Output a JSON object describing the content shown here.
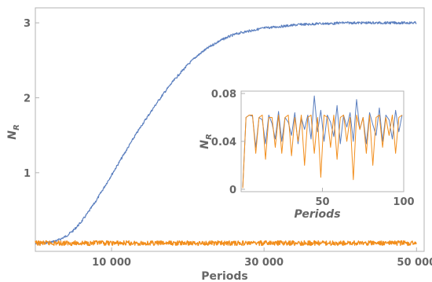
{
  "chart_data": [
    {
      "type": "line",
      "panel": "main",
      "xlabel": "Periods",
      "ylabel_main": "N",
      "ylabel_sub": "R",
      "xlim": [
        0,
        51000
      ],
      "ylim": [
        -0.05,
        3.2
      ],
      "xticks": [
        10000,
        30000,
        50000
      ],
      "xtick_labels": [
        "10 000",
        "30 000",
        "50 000"
      ],
      "yticks": [
        1,
        2,
        3
      ],
      "ytick_labels": [
        "1",
        "2",
        "3"
      ],
      "grid": false,
      "series": [
        {
          "color": "#5b7fbf",
          "x": [
            0,
            1000,
            2000,
            3000,
            4000,
            5000,
            6000,
            7000,
            8000,
            9000,
            10000,
            11000,
            12000,
            13000,
            14000,
            15000,
            16000,
            17000,
            18000,
            19000,
            20000,
            21000,
            22000,
            23000,
            24000,
            25000,
            26000,
            27000,
            28000,
            29000,
            30000,
            31000,
            32000,
            33000,
            34000,
            35000,
            36000,
            37000,
            38000,
            39000,
            40000,
            41000,
            42000,
            43000,
            44000,
            45000,
            46000,
            47000,
            48000,
            49000,
            50000
          ],
          "values": [
            0.05,
            0.06,
            0.07,
            0.1,
            0.15,
            0.23,
            0.34,
            0.48,
            0.63,
            0.8,
            0.97,
            1.14,
            1.31,
            1.48,
            1.64,
            1.79,
            1.94,
            2.08,
            2.21,
            2.33,
            2.44,
            2.54,
            2.62,
            2.69,
            2.75,
            2.8,
            2.84,
            2.87,
            2.89,
            2.91,
            2.93,
            2.94,
            2.95,
            2.96,
            2.97,
            2.98,
            2.98,
            2.99,
            2.99,
            2.99,
            3.0,
            3.0,
            3.0,
            3.0,
            3.0,
            3.0,
            3.0,
            3.0,
            3.0,
            3.0,
            3.0
          ]
        },
        {
          "color": "#f28e1c",
          "x": [
            0,
            50000
          ],
          "values": [
            0.06,
            0.06
          ]
        }
      ]
    },
    {
      "type": "line",
      "panel": "inset",
      "xlabel": "Periods",
      "ylabel_main": "N",
      "ylabel_sub": "R",
      "xlim": [
        0,
        100
      ],
      "ylim": [
        -0.002,
        0.082
      ],
      "xticks": [
        50,
        100
      ],
      "xtick_labels": [
        "50",
        "100"
      ],
      "yticks": [
        0,
        0.04,
        0.08
      ],
      "ytick_labels": [
        "0",
        "0.04",
        "0.08"
      ],
      "grid": false,
      "series": [
        {
          "color": "#5b7fbf",
          "x": [
            1,
            3,
            5,
            7,
            9,
            11,
            13,
            15,
            17,
            19,
            21,
            23,
            25,
            27,
            29,
            31,
            33,
            35,
            37,
            39,
            41,
            43,
            45,
            47,
            49,
            51,
            53,
            55,
            57,
            59,
            61,
            63,
            65,
            67,
            69,
            71,
            73,
            75,
            77,
            79,
            81,
            83,
            85,
            87,
            89,
            91,
            93,
            95,
            97,
            99
          ],
          "values": [
            0.002,
            0.06,
            0.062,
            0.061,
            0.035,
            0.06,
            0.058,
            0.038,
            0.062,
            0.055,
            0.042,
            0.065,
            0.04,
            0.06,
            0.056,
            0.045,
            0.064,
            0.038,
            0.06,
            0.05,
            0.062,
            0.042,
            0.078,
            0.048,
            0.066,
            0.04,
            0.062,
            0.056,
            0.044,
            0.07,
            0.038,
            0.062,
            0.052,
            0.064,
            0.04,
            0.075,
            0.05,
            0.06,
            0.038,
            0.064,
            0.054,
            0.045,
            0.068,
            0.04,
            0.062,
            0.058,
            0.042,
            0.066,
            0.048,
            0.062
          ]
        },
        {
          "color": "#f28e1c",
          "x": [
            1,
            3,
            5,
            7,
            9,
            11,
            13,
            15,
            17,
            19,
            21,
            23,
            25,
            27,
            29,
            31,
            33,
            35,
            37,
            39,
            41,
            43,
            45,
            47,
            49,
            51,
            53,
            55,
            57,
            59,
            61,
            63,
            65,
            67,
            69,
            71,
            73,
            75,
            77,
            79,
            81,
            83,
            85,
            87,
            89,
            91,
            93,
            95,
            97,
            99
          ],
          "values": [
            0.001,
            0.06,
            0.062,
            0.062,
            0.03,
            0.06,
            0.062,
            0.025,
            0.06,
            0.06,
            0.035,
            0.062,
            0.03,
            0.06,
            0.062,
            0.028,
            0.06,
            0.04,
            0.062,
            0.02,
            0.06,
            0.062,
            0.03,
            0.06,
            0.01,
            0.062,
            0.06,
            0.035,
            0.062,
            0.025,
            0.06,
            0.062,
            0.04,
            0.06,
            0.008,
            0.062,
            0.05,
            0.06,
            0.03,
            0.062,
            0.02,
            0.06,
            0.062,
            0.035,
            0.06,
            0.045,
            0.062,
            0.03,
            0.06,
            0.062
          ]
        }
      ]
    }
  ]
}
